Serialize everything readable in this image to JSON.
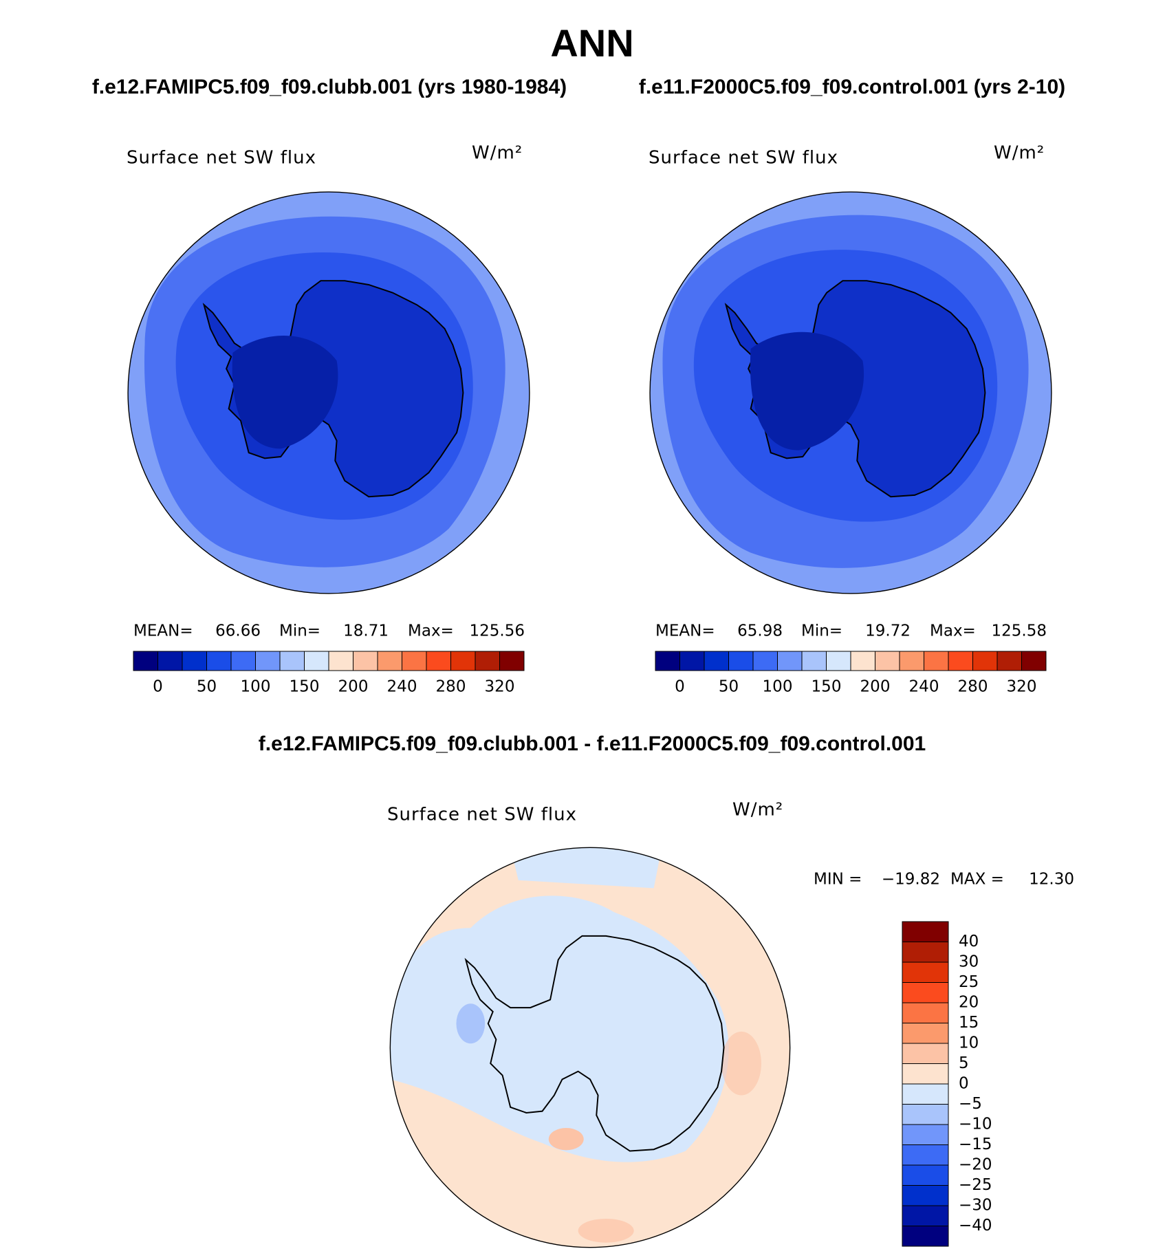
{
  "title": "ANN",
  "panels": [
    {
      "subtitle": "f.e12.FAMIPC5.f09_f09.clubb.001 (yrs 1980-1984)",
      "field": "Surface net SW flux",
      "units": "W/m²",
      "stats": [
        {
          "label": "MEAN=",
          "value": 66.66
        },
        {
          "label": "Min=",
          "value": 18.71
        },
        {
          "label": "Max=",
          "value": 125.56
        }
      ]
    },
    {
      "subtitle": "f.e11.F2000C5.f09_f09.control.001 (yrs 2-10)",
      "field": "Surface net SW flux",
      "units": "W/m²",
      "stats": [
        {
          "label": "MEAN=",
          "value": 65.98
        },
        {
          "label": "Min=",
          "value": 19.72
        },
        {
          "label": "Max=",
          "value": 125.58
        }
      ]
    }
  ],
  "colorbar": {
    "colors": [
      "#00007f",
      "#0016a6",
      "#0030cc",
      "#1a4de8",
      "#3d6bf5",
      "#7196fa",
      "#a9c4fb",
      "#d6e7fc",
      "#fde3cf",
      "#fcc3a6",
      "#fb9a6c",
      "#fb7444",
      "#fb4b1e",
      "#e13408",
      "#b01e05",
      "#800000"
    ],
    "labels": [
      0,
      50,
      100,
      150,
      200,
      240,
      280,
      320
    ]
  },
  "difference": {
    "subtitle": "f.e12.FAMIPC5.f09_f09.clubb.001 - f.e11.F2000C5.f09_f09.control.001",
    "field": "Surface net SW flux",
    "units": "W/m²",
    "stats": [
      {
        "label": "MIN =",
        "value": "−19.82"
      },
      {
        "label": "MAX =",
        "value": "12.30"
      }
    ],
    "colorbar": {
      "colors": [
        "#800000",
        "#b01e05",
        "#e13408",
        "#fb4b1e",
        "#fb7444",
        "#fb9a6c",
        "#fcc3a6",
        "#fde3cf",
        "#d6e7fc",
        "#a9c4fb",
        "#7196fa",
        "#3d6bf5",
        "#1a4de8",
        "#0030cc",
        "#0016a6",
        "#00007f"
      ],
      "labels": [
        40,
        30,
        25,
        20,
        15,
        10,
        5,
        0,
        "−5",
        "−10",
        "−15",
        "−20",
        "−25",
        "−30",
        "−40"
      ]
    }
  }
}
